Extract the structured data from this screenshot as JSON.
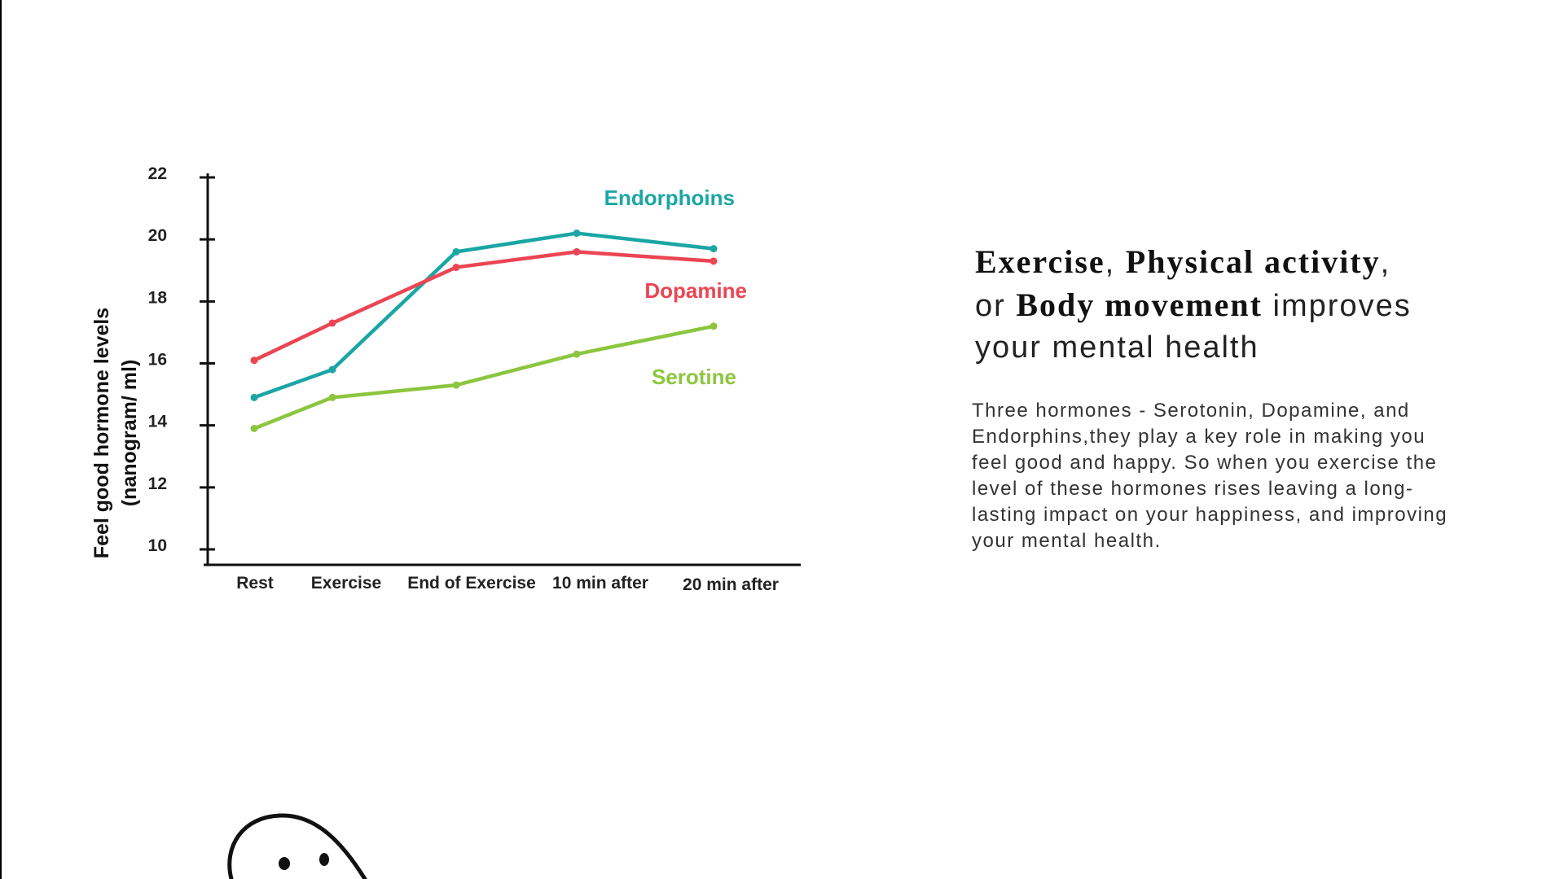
{
  "chart_data": {
    "type": "line",
    "categories": [
      "Rest",
      "Exercise",
      "End of Exercise",
      "10 min after",
      "20 min after"
    ],
    "ylabel": "Feel good hormone levels",
    "ylabel_unit": "(nanogram/ ml)",
    "ylim": [
      10,
      22
    ],
    "yticks": [
      10,
      12,
      14,
      16,
      18,
      20,
      22
    ],
    "grid": false,
    "legend": "inline labels at right end of lines",
    "series": [
      {
        "name": "Endorphoins",
        "color": "#1aa6a4",
        "values": [
          14.9,
          15.8,
          19.6,
          20.2,
          19.7
        ]
      },
      {
        "name": "Dopamine",
        "color": "#ec4553",
        "values": [
          16.1,
          17.3,
          19.1,
          19.6,
          19.3
        ]
      },
      {
        "name": "Serotine",
        "color": "#8cc63f",
        "values": [
          13.9,
          14.9,
          15.3,
          16.3,
          17.2
        ]
      }
    ]
  },
  "heading": {
    "part1": "Exercise",
    "sep1": ", ",
    "part2": "Physical activity",
    "sep2": ",",
    "part3": "or ",
    "part4": "Body movement",
    "part5": " improves",
    "part6": "your mental health"
  },
  "body": {
    "text": "Three hormones - Serotonin, Dopamine, and Endorphins,they play a key role in making you feel good and happy. So when you exercise the level of these hormones rises leaving a long-lasting impact on your happiness, and improving your mental health."
  }
}
